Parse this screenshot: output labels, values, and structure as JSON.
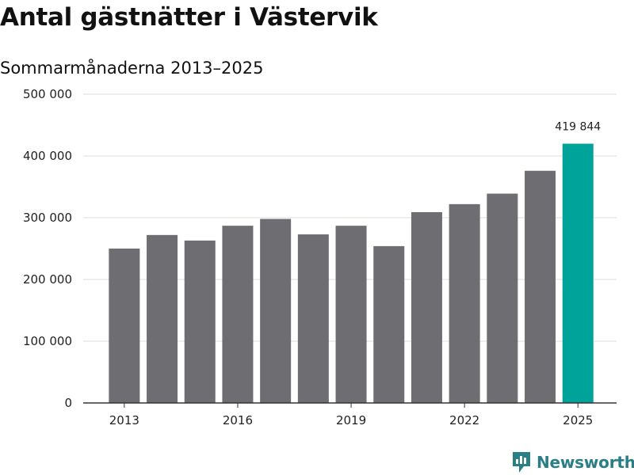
{
  "title": "Antal gästnätter i Västervik",
  "subtitle": "Sommarmånaderna 2013–2025",
  "brand": {
    "name": "Newsworthy",
    "icon": "newsworthy-logo-icon",
    "color": "#2a7f86"
  },
  "chart_data": {
    "type": "bar",
    "title": "Antal gästnätter i Västervik",
    "subtitle": "Sommarmånaderna 2013–2025",
    "x": [
      2013,
      2014,
      2015,
      2016,
      2017,
      2018,
      2019,
      2020,
      2021,
      2022,
      2023,
      2024,
      2025
    ],
    "values": [
      250000,
      272000,
      263000,
      287000,
      298000,
      273000,
      287000,
      254000,
      309000,
      322000,
      339000,
      376000,
      419844
    ],
    "x_ticks": [
      "2013",
      "2016",
      "2019",
      "2022",
      "2025"
    ],
    "y_ticks": [
      "0",
      "100 000",
      "200 000",
      "300 000",
      "400 000",
      "500 000"
    ],
    "ylim": [
      0,
      500000
    ],
    "annotations": [
      {
        "x": 2025,
        "text": "419 844"
      }
    ],
    "colors": {
      "bar": "#6e6d72",
      "highlight": "#00a39a",
      "grid": "#dcdcdc",
      "axis": "#333333"
    },
    "grid": true
  }
}
